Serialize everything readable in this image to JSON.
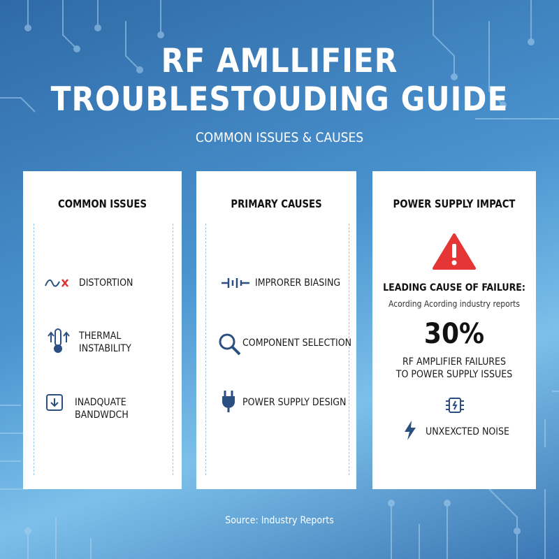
{
  "header": {
    "title_lines": [
      "RF AMLLIFIER",
      "TROUBLESTOUDING GUIDE"
    ],
    "subtitle": "COMMON ISSUES & CAUSES"
  },
  "panels": [
    {
      "title": "COMMON ISSUES",
      "items": [
        [
          "DISTORTION"
        ],
        [
          "THERMAL",
          "INSTABILITY"
        ],
        [
          "INADQUATE BANDWDCH"
        ]
      ]
    },
    {
      "title": "PRIMARY CAUSES",
      "items": [
        [
          "IMPRORER BIASING"
        ],
        [
          "COMPONENT SELECTION"
        ],
        [
          "POWER SUPPLY DESIGN"
        ]
      ]
    },
    {
      "title": "POWER SUPPLY IMPACT",
      "lead": "LEADING CAUSE OF FAILURE:",
      "lead_note": "Acording Acording industry reports",
      "stat": "30%",
      "stat_lines": [
        "RF AMPLIFIER FAILURES",
        "TO POWER SUPPLY ISSUES"
      ],
      "extra": "UNXEXCTED NOISE"
    }
  ],
  "footer": {
    "source": "Source: Industry Reports"
  }
}
